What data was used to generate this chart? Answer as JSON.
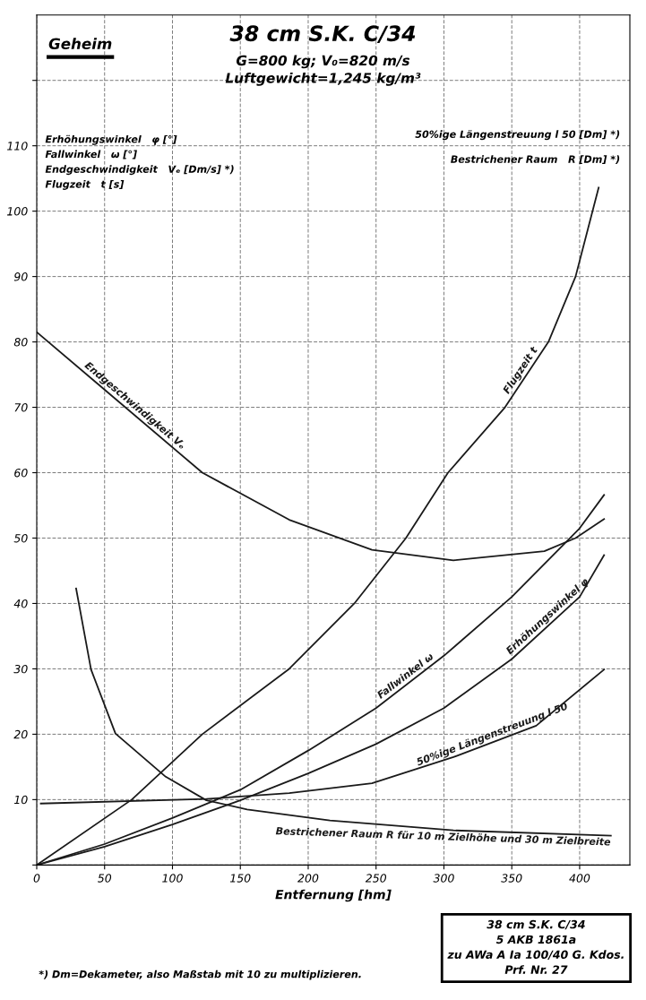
{
  "chart_data": {
    "type": "line",
    "title": "38 cm S.K. C/34",
    "subtitle": "G=800 kg; V₀=820 m/s\nLuftgewicht=1,245 kg/m³",
    "xlabel": "Entfernung [hm]",
    "xlim": [
      0,
      437
    ],
    "ylim": [
      0,
      130
    ],
    "xticks": [
      0,
      50,
      100,
      150,
      200,
      250,
      300,
      350,
      400
    ],
    "yticks": [
      {
        "value": 0,
        "label": null
      },
      10,
      20,
      30,
      40,
      50,
      60,
      70,
      80,
      90,
      100,
      110,
      {
        "value": 120,
        "label": null
      }
    ],
    "grid": true,
    "marker": "none",
    "line_style": "solid",
    "series": [
      {
        "name": "Flugzeit t",
        "color": "#1a1a1a",
        "x": [
          0,
          70,
          122,
          186,
          234,
          272,
          303,
          345,
          377,
          397,
          414
        ],
        "values": [
          0,
          10,
          20,
          30,
          40,
          50,
          60,
          70,
          80,
          90,
          103.6
        ]
      },
      {
        "name": "Endgeschwindigkeit Vₑ",
        "color": "#1a1a1a",
        "x": [
          0,
          46,
          122,
          186,
          247,
          307,
          374,
          397,
          418
        ],
        "values": [
          81.5,
          73.4,
          60,
          52.8,
          48.2,
          46.6,
          48,
          50,
          52.9
        ]
      },
      {
        "name": "Fallwinkel ω",
        "color": "#1a1a1a",
        "x": [
          0,
          50,
          100,
          150,
          200,
          250,
          300,
          350,
          400,
          418
        ],
        "values": [
          0,
          3.2,
          7.2,
          11.5,
          17.5,
          24,
          32,
          41,
          51.5,
          56.6
        ]
      },
      {
        "name": "Erhöhungswinkel φ",
        "color": "#1a1a1a",
        "x": [
          0,
          50,
          100,
          150,
          200,
          250,
          300,
          350,
          400,
          418
        ],
        "values": [
          0,
          2.8,
          6.2,
          9.9,
          14,
          18.5,
          24,
          31.5,
          41,
          47.4
        ]
      },
      {
        "name": "50%ige Längenstreuung l 50",
        "color": "#1a1a1a",
        "x": [
          3,
          125,
          186,
          247,
          307,
          368,
          418
        ],
        "values": [
          9.4,
          10.1,
          11,
          12.5,
          16.5,
          21.3,
          29.9
        ]
      },
      {
        "name": "Bestrichener Raum R für 10 m Zielhöhe und 30 m Zielbreite",
        "color": "#1a1a1a",
        "x": [
          29,
          40,
          58,
          95,
          125,
          155,
          216,
          307,
          423
        ],
        "values": [
          42.3,
          29.9,
          20.1,
          13.5,
          9.9,
          8.5,
          6.8,
          5.3,
          4.5
        ]
      }
    ],
    "annotations": [
      "Geheim",
      "Erhöhungswinkel   φ [°]",
      "Fallwinkel   ω [°]",
      "Endgeschwindigkeit   Vₑ [Dm/s] *)",
      "Flugzeit   t [s]",
      "50%ige Längenstreuung l 50 [Dm] *)",
      "Bestrichener Raum   R [Dm] *)",
      "*) Dm=Dekameter, also Maßstab mit 10 zu multiplizieren.",
      "38 cm S.K. C/34\n5 AKB 1861a\nzu AWa A Ia 100/40 G. Kdos.\nPrf. Nr. 27"
    ]
  }
}
